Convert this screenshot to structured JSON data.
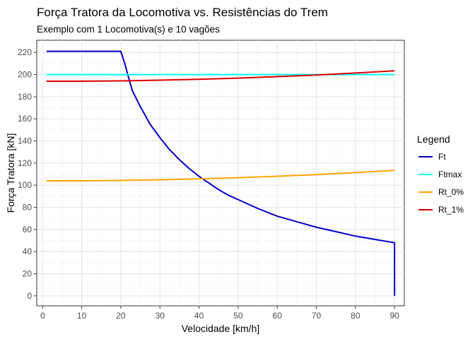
{
  "chart_data": {
    "type": "line",
    "title": "Força Tratora da Locomotiva vs. Resistências do Trem",
    "subtitle": "Exemplo com 1 Locomotiva(s) e 10 vagões",
    "xlabel": "Velocidade [km/h]",
    "ylabel": "Força Tratora [kN]",
    "xlim": [
      -1.5,
      92.5
    ],
    "ylim": [
      -9,
      231
    ],
    "x_ticks": [
      0,
      10,
      20,
      30,
      40,
      50,
      60,
      70,
      80,
      90
    ],
    "x_tick_labels": [
      "0",
      "10",
      "20",
      "30",
      "40",
      "50",
      "60",
      "70",
      "80",
      "90"
    ],
    "y_ticks": [
      0,
      20,
      40,
      60,
      80,
      100,
      120,
      140,
      160,
      180,
      200,
      220
    ],
    "y_tick_labels": [
      "0",
      "20",
      "40",
      "60",
      "80",
      "100",
      "120",
      "140",
      "160",
      "180",
      "200",
      "220"
    ],
    "grid": true,
    "legend_title": "Legend",
    "legend_position": "right",
    "series": [
      {
        "name": "Ft",
        "color": "#0000cd",
        "x": [
          1,
          5,
          10,
          15,
          20,
          21,
          22,
          23,
          25,
          27.5,
          30,
          32.5,
          35,
          37.5,
          40,
          42.5,
          45,
          47.5,
          50,
          55,
          60,
          65,
          70,
          75,
          80,
          85,
          90,
          90
        ],
        "y": [
          221,
          221,
          221,
          221,
          221,
          210,
          197,
          185,
          171,
          155,
          143,
          132,
          123,
          115,
          108,
          102,
          96,
          91,
          87,
          79,
          72,
          67,
          62,
          58,
          54,
          51,
          48,
          0
        ]
      },
      {
        "name": "Ftmax",
        "color": "#00ffff",
        "x": [
          1,
          90
        ],
        "y": [
          200,
          200
        ]
      },
      {
        "name": "Rt_0%",
        "color": "#ffa500",
        "x": [
          1,
          10,
          20,
          30,
          40,
          50,
          60,
          70,
          80,
          90
        ],
        "y": [
          104,
          104,
          104.3,
          104.9,
          105.7,
          106.8,
          108.1,
          109.6,
          111.4,
          113.4
        ]
      },
      {
        "name": "Rt_1%",
        "color": "#dd0000",
        "x": [
          1,
          10,
          20,
          30,
          40,
          50,
          60,
          70,
          80,
          90
        ],
        "y": [
          194,
          194,
          194.3,
          194.9,
          195.7,
          196.8,
          198.1,
          199.6,
          201.4,
          203.4
        ]
      }
    ]
  }
}
